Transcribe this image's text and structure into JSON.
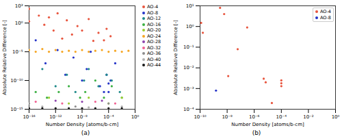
{
  "chart_data": [
    {
      "type": "scatter",
      "title": "(a)",
      "log": true,
      "legend": "right",
      "x_label": "Number Density [atoms/b-cm]",
      "y_label": "Absolute Relative Difference [-]",
      "xlim": [
        1e-16,
        1
      ],
      "ylim": [
        1e-15,
        1000
      ],
      "xticks": [
        {
          "value": 1e-16,
          "label": "10⁻¹⁶"
        },
        {
          "value": 1e-12,
          "label": "10⁻¹²"
        },
        {
          "value": 1e-08,
          "label": "10⁻⁸"
        },
        {
          "value": 0.0001,
          "label": "10⁻⁴"
        },
        {
          "value": 1,
          "label": "10⁰"
        }
      ],
      "yticks": [
        {
          "value": 1e-15,
          "label": "10⁻¹⁵"
        },
        {
          "value": 1e-10,
          "label": "10⁻¹⁰"
        },
        {
          "value": 1e-05,
          "label": "10⁻⁵"
        },
        {
          "value": 1,
          "label": "10⁰"
        },
        {
          "value": 1000,
          "label": "10³"
        }
      ],
      "series": [
        {
          "name": "AO-4",
          "color": "#e8553e",
          "x": [
            1e-16,
            1e-16,
            3e-15,
            2e-14,
            1e-13,
            5e-13,
            2e-12,
            1e-11,
            5e-11,
            3e-10,
            2e-09,
            1e-08,
            1e-07,
            5e-07,
            3e-06,
            2e-05,
            5e-05,
            0.0002
          ],
          "values": [
            300,
            2,
            20,
            0.5,
            10,
            0.05,
            50,
            0.002,
            3,
            0.01,
            0.3,
            0.05,
            5,
            0.0008,
            0.02,
            0.001,
            0.1,
            0.005
          ]
        },
        {
          "name": "AO-8",
          "color": "#2433c8",
          "x": [
            1e-15,
            3e-14,
            2e-12,
            3e-11,
            5e-10,
            1e-08,
            5e-08,
            2e-07,
            5e-06,
            2e-05,
            5e-05,
            0.0001,
            0.0001,
            0.0002,
            0.001
          ],
          "values": [
            0.001,
            1e-07,
            2e-05,
            1e-09,
            1e-06,
            1e-10,
            1e-08,
            1e-05,
            1e-11,
            1e-12,
            1e-09,
            1e-12,
            3e-11,
            1e-10,
            1e-07
          ]
        },
        {
          "name": "AO-12",
          "color": "#1f8a8a",
          "x": [
            1e-14,
            1e-12,
            5e-11,
            1e-09,
            2e-08,
            1e-07,
            3e-06,
            5e-05,
            0.0003,
            0.005
          ],
          "values": [
            1e-08,
            1e-11,
            1e-09,
            1e-12,
            1e-10,
            1e-08,
            1e-11,
            1e-09,
            1e-10,
            1e-12
          ]
        },
        {
          "name": "AO-16",
          "color": "#3cb043",
          "x": [
            1e-15,
            5e-14,
            3e-12,
            1e-10,
            5e-09,
            3e-08,
            1e-06,
            2e-05,
            0.0003,
            0.01
          ],
          "values": [
            1e-12,
            1e-13,
            1e-12,
            1e-11,
            1e-13,
            1e-12,
            1e-10,
            1e-13,
            1e-11,
            1e-13
          ]
        },
        {
          "name": "AO-20",
          "color": "#9acd32",
          "x": [
            1e-13,
            1e-10,
            1e-07,
            0.0001,
            0.01
          ],
          "values": [
            1e-13,
            1e-14,
            1e-13,
            1e-14,
            1e-13
          ]
        },
        {
          "name": "AO-24",
          "color": "#f5a623",
          "x": [
            1e-16,
            1e-15,
            1e-14,
            1e-13,
            1e-12,
            1e-11,
            1e-10,
            1e-09,
            1e-08,
            1e-07,
            1e-06,
            1e-05,
            0.0001,
            0.001,
            0.01,
            0.1
          ],
          "values": [
            2e-05,
            1e-05,
            3e-05,
            1e-05,
            2e-05,
            1e-05,
            1.5e-05,
            1e-05,
            2e-05,
            1e-05,
            1.5e-05,
            2e-05,
            1e-05,
            1.5e-05,
            1e-05,
            1.5e-05
          ]
        },
        {
          "name": "AO-28",
          "color": "#8e44ad",
          "x": [
            1e-12,
            1e-08,
            1e-05
          ],
          "values": [
            3e-14,
            2e-14,
            3e-14
          ]
        },
        {
          "name": "AO-32",
          "color": "#f06292",
          "x": [
            1e-15,
            1e-11,
            1e-06,
            0.001
          ],
          "values": [
            2e-14,
            1e-14,
            2e-14,
            1e-14
          ]
        },
        {
          "name": "AO-36",
          "color": "#8c8c8c",
          "x": [
            1e-16,
            1e-09,
            0.0001
          ],
          "values": [
            1e-14,
            3e-15,
            1e-14
          ]
        },
        {
          "name": "AO-40",
          "color": "#b0b0b0",
          "x": [
            1e-14,
            1e-07,
            0.01
          ],
          "values": [
            3e-15,
            2e-15,
            3e-15
          ]
        },
        {
          "name": "AO-44",
          "color": "#1a1a1a",
          "x": [
            1e-16,
            1e-14,
            1e-12,
            1e-10,
            1e-08,
            1e-06,
            0.0001,
            0.01
          ],
          "values": [
            1.5e-15,
            1.5e-15,
            1.5e-15,
            1.5e-15,
            1.5e-15,
            1.5e-15,
            1.5e-15,
            1.5e-15
          ]
        }
      ]
    },
    {
      "type": "scatter",
      "title": "(b)",
      "log": true,
      "legend": "upper right",
      "x_label": "Number Density [atoms/b-cm]",
      "y_label": "Absolute Relative Difference [-]",
      "xlim": [
        1e-10,
        1
      ],
      "ylim": [
        0.0001,
        10
      ],
      "xticks": [
        {
          "value": 1e-10,
          "label": "10⁻¹⁰"
        },
        {
          "value": 1e-08,
          "label": "10⁻⁸"
        },
        {
          "value": 1e-06,
          "label": "10⁻⁶"
        },
        {
          "value": 0.0001,
          "label": "10⁻⁴"
        },
        {
          "value": 0.01,
          "label": "10⁻²"
        },
        {
          "value": 1,
          "label": "10⁰"
        }
      ],
      "yticks": [
        {
          "value": 0.0001,
          "label": "10⁻⁴"
        },
        {
          "value": 0.001,
          "label": "10⁻³"
        },
        {
          "value": 0.01,
          "label": "10⁻²"
        },
        {
          "value": 0.1,
          "label": "10⁻¹"
        },
        {
          "value": 1,
          "label": "10⁰"
        },
        {
          "value": 10,
          "label": "10¹"
        }
      ],
      "series": [
        {
          "name": "AO-4",
          "color": "#e8553e",
          "x": [
            1.2e-10,
            1.6e-10,
            3e-09,
            6e-09,
            1.2e-08,
            6e-08,
            3e-07,
            5e-06,
            7e-06,
            0.0001,
            0.0001,
            0.0001,
            2e-05
          ],
          "values": [
            1.5,
            0.5,
            8,
            4,
            0.004,
            0.08,
            0.9,
            0.003,
            0.002,
            0.0025,
            0.0018,
            0.0013,
            0.0002
          ]
        },
        {
          "name": "AO-8",
          "color": "#2433c8",
          "x": [
            1.5e-09
          ],
          "values": [
            0.0008
          ]
        }
      ]
    }
  ]
}
